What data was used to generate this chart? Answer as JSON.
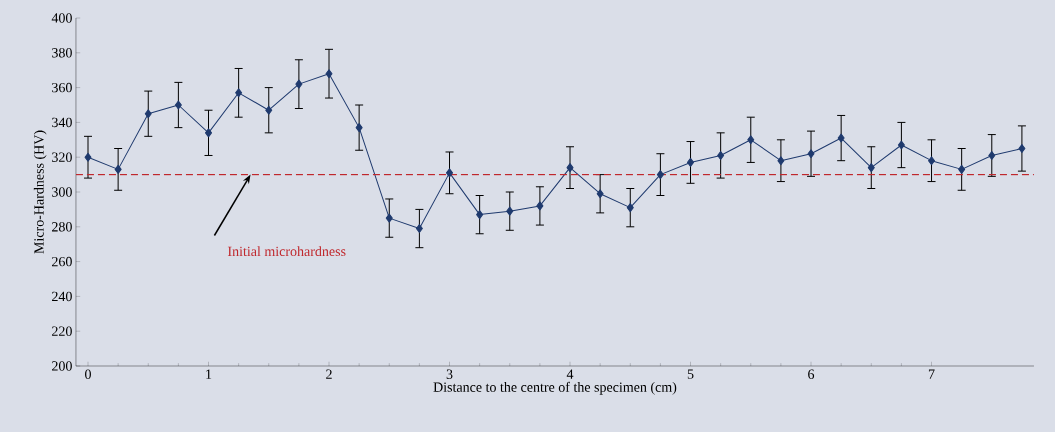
{
  "chart_data": {
    "type": "line",
    "xlabel": "Distance to the centre of the specimen (cm)",
    "ylabel": "Micro-Hardness (HV)",
    "x": [
      0,
      0.25,
      0.5,
      0.75,
      1,
      1.25,
      1.5,
      1.75,
      2,
      2.25,
      2.5,
      2.75,
      3,
      3.25,
      3.5,
      3.75,
      4,
      4.25,
      4.5,
      4.75,
      5,
      5.25,
      5.5,
      5.75,
      6,
      6.25,
      6.5,
      6.75,
      7,
      7.25,
      7.5,
      7.75
    ],
    "series": [
      {
        "color": "#1f3a6e",
        "values": [
          320,
          313,
          345,
          350,
          334,
          357,
          347,
          362,
          368,
          337,
          285,
          279,
          311,
          287,
          289,
          292,
          314,
          299,
          291,
          310,
          317,
          321,
          330,
          318,
          322,
          331,
          314,
          327,
          318,
          313,
          321,
          325
        ],
        "errors": [
          12,
          12,
          13,
          13,
          13,
          14,
          13,
          14,
          14,
          13,
          11,
          11,
          12,
          11,
          11,
          11,
          12,
          11,
          11,
          12,
          12,
          13,
          13,
          12,
          13,
          13,
          12,
          13,
          12,
          12,
          12,
          13
        ]
      }
    ],
    "xlim": [
      -0.1,
      7.85
    ],
    "ylim": [
      200,
      400
    ],
    "xticks": [
      0,
      1,
      2,
      3,
      4,
      5,
      6,
      7
    ],
    "yticks": [
      200,
      220,
      240,
      260,
      280,
      300,
      320,
      340,
      360,
      380,
      400
    ],
    "marker": "diamond",
    "line_style": "solid",
    "grid": false,
    "ref_lines": [
      {
        "axis": "y",
        "value": 310,
        "label": "Initial microhardness",
        "color": "#c0282d",
        "line_style": "dashed"
      }
    ]
  }
}
